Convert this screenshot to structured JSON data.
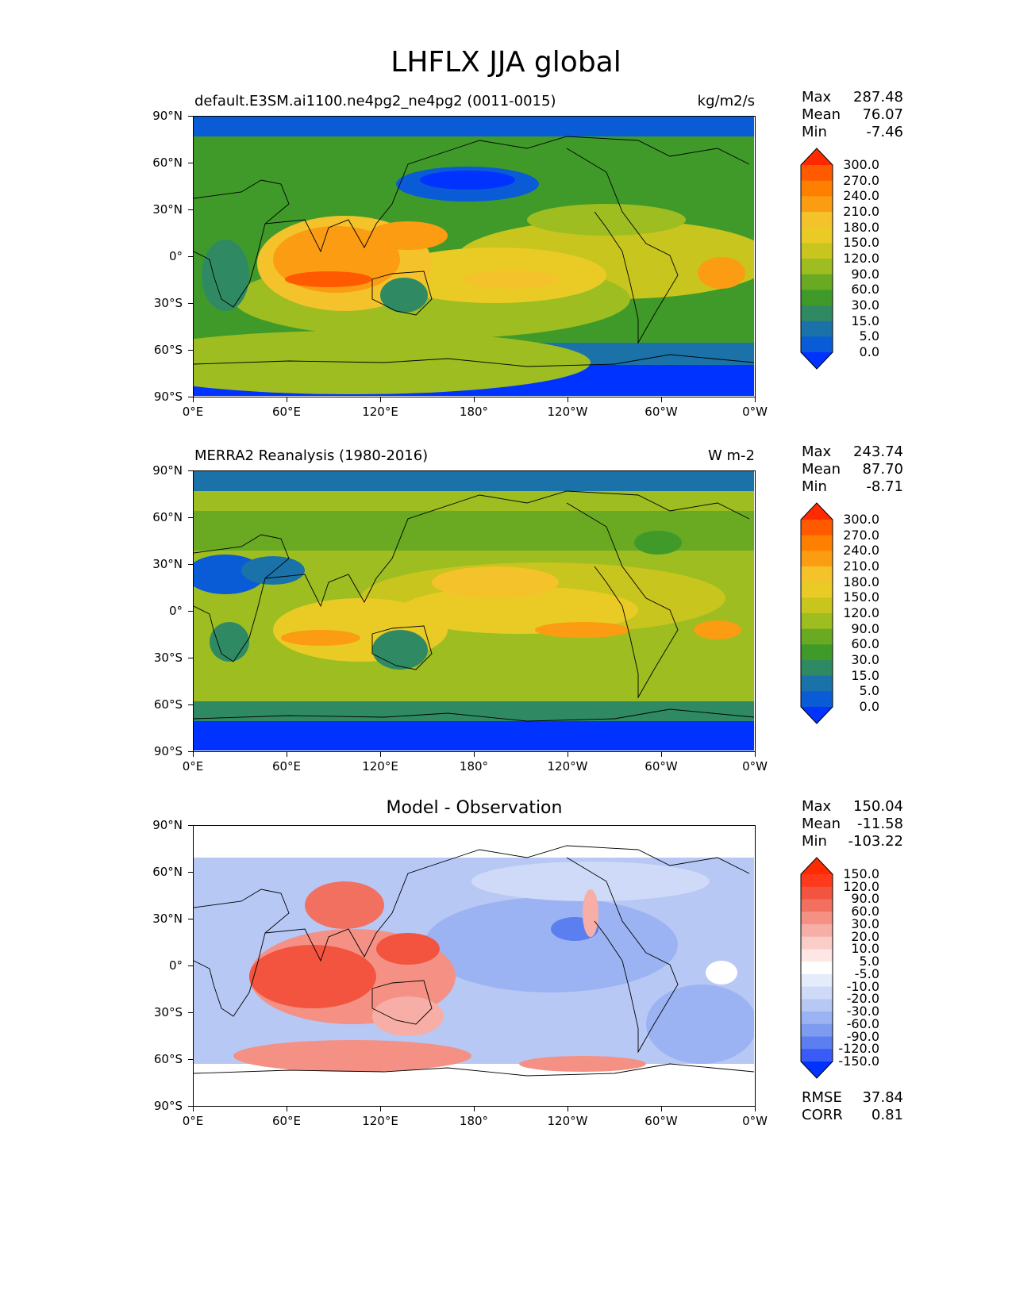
{
  "figure": {
    "title": "LHFLX JJA global"
  },
  "x_ticks": [
    "0°E",
    "60°E",
    "120°E",
    "180°",
    "120°W",
    "60°W",
    "0°W"
  ],
  "y_ticks": [
    "90°N",
    "60°N",
    "30°N",
    "0°",
    "30°S",
    "60°S",
    "90°S"
  ],
  "panels": [
    {
      "title_left": "default.E3SM.ai1100.ne4pg2_ne4pg2 (0011-0015)",
      "title_right": "kg/m2/s",
      "stats": [
        {
          "label": "Max",
          "value": "287.48"
        },
        {
          "label": "Mean",
          "value": "76.07"
        },
        {
          "label": "Min",
          "value": "-7.46"
        }
      ],
      "colorbar": {
        "levels": [
          "300.0",
          "270.0",
          "240.0",
          "210.0",
          "180.0",
          "150.0",
          "120.0",
          "90.0",
          "60.0",
          "30.0",
          "15.0",
          "5.0",
          "0.0"
        ],
        "colors": [
          "#ff2a00",
          "#ff5a00",
          "#ff7f00",
          "#fb9c12",
          "#f4c22a",
          "#eacb26",
          "#c8c51e",
          "#9dbd21",
          "#6aaa23",
          "#3f9a2a",
          "#2f8a64",
          "#1a72a8",
          "#0a5cd6",
          "#0033ff"
        ]
      }
    },
    {
      "title_left": "MERRA2 Reanalysis (1980-2016)",
      "title_right": "W m-2",
      "stats": [
        {
          "label": "Max",
          "value": "243.74"
        },
        {
          "label": "Mean",
          "value": "87.70"
        },
        {
          "label": "Min",
          "value": "-8.71"
        }
      ],
      "colorbar": {
        "levels": [
          "300.0",
          "270.0",
          "240.0",
          "210.0",
          "180.0",
          "150.0",
          "120.0",
          "90.0",
          "60.0",
          "30.0",
          "15.0",
          "5.0",
          "0.0"
        ],
        "colors": [
          "#ff2a00",
          "#ff5a00",
          "#ff7f00",
          "#fb9c12",
          "#f4c22a",
          "#eacb26",
          "#c8c51e",
          "#9dbd21",
          "#6aaa23",
          "#3f9a2a",
          "#2f8a64",
          "#1a72a8",
          "#0a5cd6",
          "#0033ff"
        ]
      }
    },
    {
      "title_center": "Model - Observation",
      "stats": [
        {
          "label": "Max",
          "value": "150.04"
        },
        {
          "label": "Mean",
          "value": "-11.58"
        },
        {
          "label": "Min",
          "value": "-103.22"
        }
      ],
      "colorbar": {
        "levels": [
          "150.0",
          "120.0",
          "90.0",
          "60.0",
          "30.0",
          "20.0",
          "10.0",
          "5.0",
          "-5.0",
          "-10.0",
          "-20.0",
          "-30.0",
          "-60.0",
          "-90.0",
          "-120.0",
          "-150.0"
        ],
        "colors": [
          "#ff2a00",
          "#ff3a1c",
          "#f2543f",
          "#f27060",
          "#f49184",
          "#f7aea6",
          "#fbcdc8",
          "#fde6e3",
          "#ffffff",
          "#e4ebfb",
          "#cfdaf8",
          "#b7c8f5",
          "#9bb3f2",
          "#7d9bef",
          "#5b7ff0",
          "#3a5bf5",
          "#0033ff"
        ]
      },
      "extra_stats": [
        {
          "label": "RMSE",
          "value": "37.84"
        },
        {
          "label": "CORR",
          "value": "0.81"
        }
      ]
    }
  ],
  "chart_data": [
    {
      "type": "heatmap",
      "title": "default.E3SM.ai1100.ne4pg2_ne4pg2 (0011-0015)",
      "units": "kg/m2/s",
      "x_range": [
        0,
        360
      ],
      "y_range": [
        -90,
        90
      ],
      "max": 287.48,
      "mean": 76.07,
      "min": -7.46,
      "blobs": [
        {
          "lon": 95,
          "lat": 5,
          "value": 230
        },
        {
          "lon": 75,
          "lat": 10,
          "value": 210
        },
        {
          "lon": 90,
          "lat": -10,
          "value": 240
        },
        {
          "lon": 140,
          "lat": 5,
          "value": 190
        },
        {
          "lon": 200,
          "lat": -10,
          "value": 160
        },
        {
          "lon": 335,
          "lat": -10,
          "value": 200
        },
        {
          "lon": 160,
          "lat": 50,
          "value": 0
        },
        {
          "lon": 55,
          "lat": 0,
          "value": 160
        },
        {
          "lon": 0,
          "lat": -85,
          "value": 0
        },
        {
          "lon": 140,
          "lat": -25,
          "value": 40
        }
      ]
    },
    {
      "type": "heatmap",
      "title": "MERRA2 Reanalysis (1980-2016)",
      "units": "W m-2",
      "x_range": [
        0,
        360
      ],
      "y_range": [
        -90,
        90
      ],
      "max": 243.74,
      "mean": 87.7,
      "min": -8.71,
      "blobs": [
        {
          "lon": 70,
          "lat": -15,
          "value": 200
        },
        {
          "lon": 200,
          "lat": -15,
          "value": 190
        },
        {
          "lon": 330,
          "lat": -10,
          "value": 200
        },
        {
          "lon": 140,
          "lat": 25,
          "value": 150
        },
        {
          "lon": 25,
          "lat": 25,
          "value": 0
        },
        {
          "lon": 135,
          "lat": -25,
          "value": 20
        },
        {
          "lon": 0,
          "lat": -85,
          "value": 0
        }
      ]
    },
    {
      "type": "heatmap",
      "title": "Model - Observation",
      "x_range": [
        0,
        360
      ],
      "y_range": [
        -90,
        90
      ],
      "max": 150.04,
      "mean": -11.58,
      "min": -103.22,
      "rmse": 37.84,
      "corr": 0.81,
      "blobs": [
        {
          "lon": 90,
          "lat": 5,
          "value": 90
        },
        {
          "lon": 110,
          "lat": 40,
          "value": 60
        },
        {
          "lon": 140,
          "lat": 10,
          "value": 60
        },
        {
          "lon": 100,
          "lat": -45,
          "value": 60
        },
        {
          "lon": 270,
          "lat": -60,
          "value": 40
        },
        {
          "lon": 250,
          "lat": 20,
          "value": -60
        },
        {
          "lon": 200,
          "lat": 0,
          "value": -40
        },
        {
          "lon": 320,
          "lat": -40,
          "value": -40
        }
      ]
    }
  ]
}
